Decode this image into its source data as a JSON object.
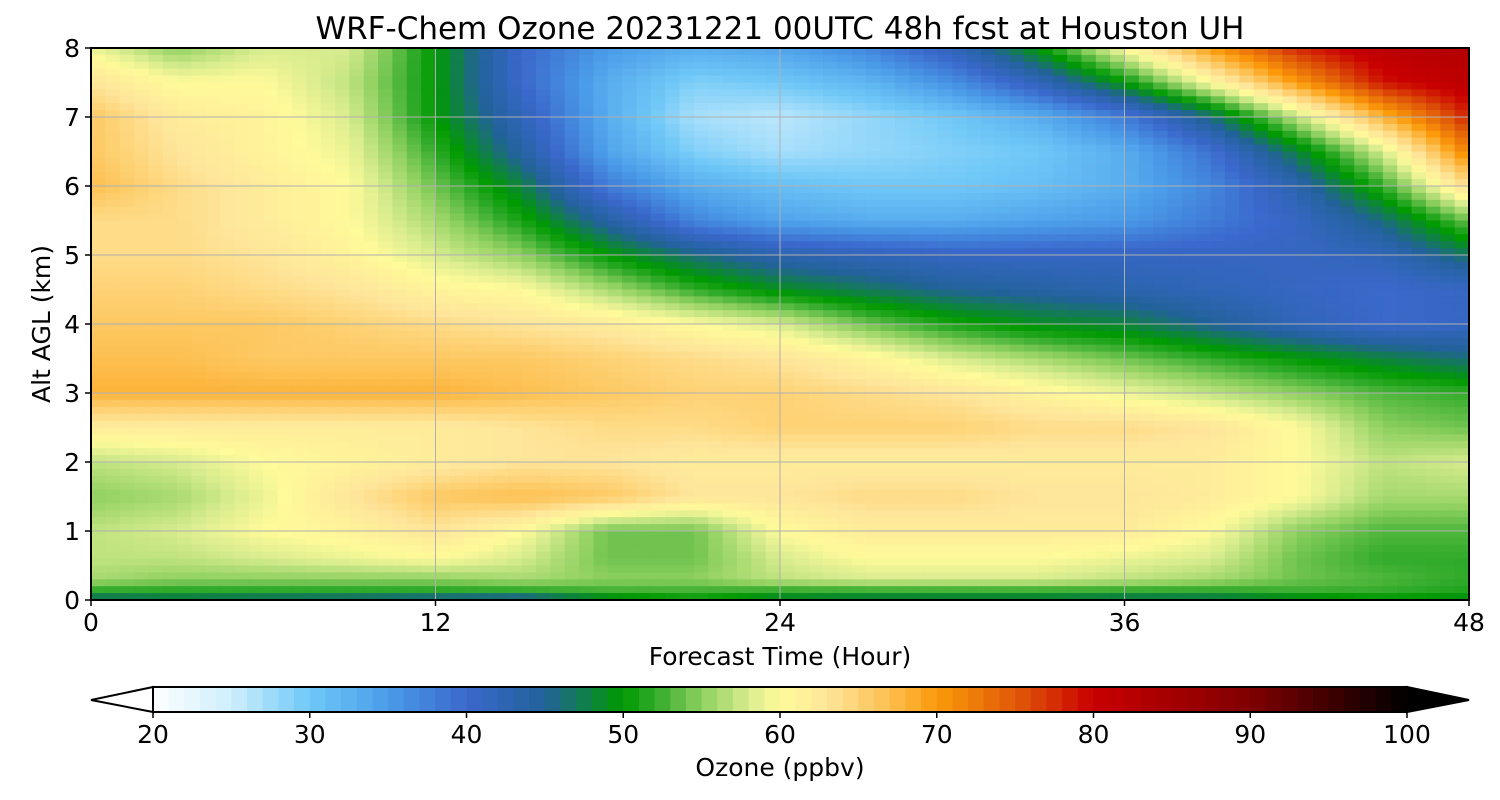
{
  "chart_data": {
    "type": "heatmap",
    "title": "WRF-Chem Ozone  20231221 00UTC 48h fcst at Houston UH",
    "xlabel": "Forecast Time (Hour)",
    "ylabel": "Alt AGL (km)",
    "xlim": [
      0,
      48
    ],
    "ylim": [
      0,
      8
    ],
    "x_ticks": [
      "0",
      "12",
      "24",
      "36",
      "48"
    ],
    "y_ticks": [
      "0",
      "1",
      "2",
      "3",
      "4",
      "5",
      "6",
      "7",
      "8"
    ],
    "grid": true,
    "x": [
      0,
      3,
      6,
      9,
      12,
      15,
      18,
      21,
      24,
      27,
      30,
      33,
      36,
      39,
      42,
      45,
      48
    ],
    "y": [
      0,
      0.1,
      0.3,
      0.6,
      1,
      1.5,
      2,
      2.5,
      3,
      3.5,
      4,
      4.5,
      5,
      5.5,
      6,
      6.5,
      7,
      7.5,
      8
    ],
    "z": [
      [
        44,
        45,
        44,
        43,
        42,
        41,
        47,
        50,
        47,
        46,
        46,
        46,
        45,
        45,
        47,
        49,
        48
      ],
      [
        51,
        51,
        51,
        51,
        51,
        51,
        52,
        52,
        51,
        51,
        51,
        51,
        51,
        51,
        52,
        52,
        51
      ],
      [
        56,
        55,
        55,
        55,
        55,
        56,
        55,
        55,
        57,
        58,
        58,
        58,
        57,
        56,
        54,
        53,
        52
      ],
      [
        57,
        57,
        58,
        59,
        60,
        58,
        54,
        54,
        58,
        60,
        60,
        60,
        59,
        58,
        54,
        52,
        52
      ],
      [
        57,
        58,
        60,
        61,
        63,
        60,
        54,
        54,
        60,
        62,
        62,
        62,
        62,
        60,
        55,
        53,
        53
      ],
      [
        55,
        56,
        59,
        63,
        66,
        67,
        66,
        63,
        63,
        64,
        64,
        63,
        63,
        62,
        60,
        56,
        56
      ],
      [
        57,
        58,
        60,
        61,
        62,
        63,
        63,
        62,
        62,
        62,
        62,
        62,
        62,
        62,
        60,
        57,
        58
      ],
      [
        62,
        62,
        62,
        62,
        62,
        63,
        64,
        64,
        65,
        65,
        65,
        64,
        64,
        63,
        60,
        55,
        54
      ],
      [
        68,
        68,
        68,
        68,
        68,
        67,
        66,
        65,
        65,
        64,
        63,
        61,
        59,
        57,
        55,
        53,
        52
      ],
      [
        67,
        67,
        66,
        66,
        66,
        66,
        65,
        64,
        63,
        61,
        58,
        56,
        54,
        52,
        50,
        48,
        46
      ],
      [
        66,
        66,
        66,
        65,
        64,
        63,
        62,
        60,
        58,
        54,
        51,
        49,
        48,
        45,
        42,
        40,
        41
      ],
      [
        65,
        65,
        64,
        63,
        61,
        60,
        56,
        52,
        49,
        47,
        45,
        44,
        43,
        42,
        41,
        40,
        41
      ],
      [
        64,
        64,
        63,
        61,
        58,
        55,
        50,
        46,
        43,
        42,
        41,
        41,
        41,
        41,
        41,
        42,
        47
      ],
      [
        64,
        64,
        62,
        60,
        56,
        51,
        44,
        37,
        34,
        33,
        33,
        34,
        35,
        38,
        41,
        46,
        54
      ],
      [
        67,
        64,
        62,
        60,
        54,
        48,
        38,
        33,
        31,
        30,
        30,
        31,
        33,
        37,
        43,
        52,
        64
      ],
      [
        66,
        63,
        61,
        59,
        52,
        44,
        34,
        29,
        27,
        28,
        29,
        30,
        33,
        39,
        48,
        58,
        72
      ],
      [
        66,
        62,
        61,
        58,
        50,
        42,
        33,
        27,
        26,
        28,
        30,
        33,
        38,
        46,
        57,
        68,
        78
      ],
      [
        63,
        60,
        60,
        57,
        50,
        40,
        33,
        29,
        30,
        32,
        36,
        42,
        50,
        60,
        70,
        79,
        82
      ],
      [
        59,
        55,
        58,
        58,
        50,
        40,
        35,
        33,
        34,
        37,
        42,
        50,
        60,
        70,
        78,
        82,
        83
      ]
    ],
    "colorbar": {
      "label": "Ozone  (ppbv)",
      "min": 20,
      "max": 100,
      "extend": "both",
      "ticks": [
        "20",
        "30",
        "40",
        "50",
        "60",
        "70",
        "80",
        "90",
        "100"
      ]
    },
    "colormap": {
      "stops": [
        [
          20,
          "#ffffff"
        ],
        [
          25,
          "#cdeefd"
        ],
        [
          30,
          "#6fc8f7"
        ],
        [
          35,
          "#4a9be8"
        ],
        [
          40,
          "#3a68cc"
        ],
        [
          45,
          "#22629a"
        ],
        [
          50,
          "#009a00"
        ],
        [
          52,
          "#30aa2a"
        ],
        [
          55,
          "#8ed060"
        ],
        [
          58,
          "#d8ec8e"
        ],
        [
          60,
          "#fffa9a"
        ],
        [
          63,
          "#fee59a"
        ],
        [
          67,
          "#fdbf50"
        ],
        [
          70,
          "#fb9a0a"
        ],
        [
          75,
          "#e05a08"
        ],
        [
          80,
          "#c90000"
        ],
        [
          90,
          "#800000"
        ],
        [
          100,
          "#000000"
        ]
      ]
    }
  }
}
